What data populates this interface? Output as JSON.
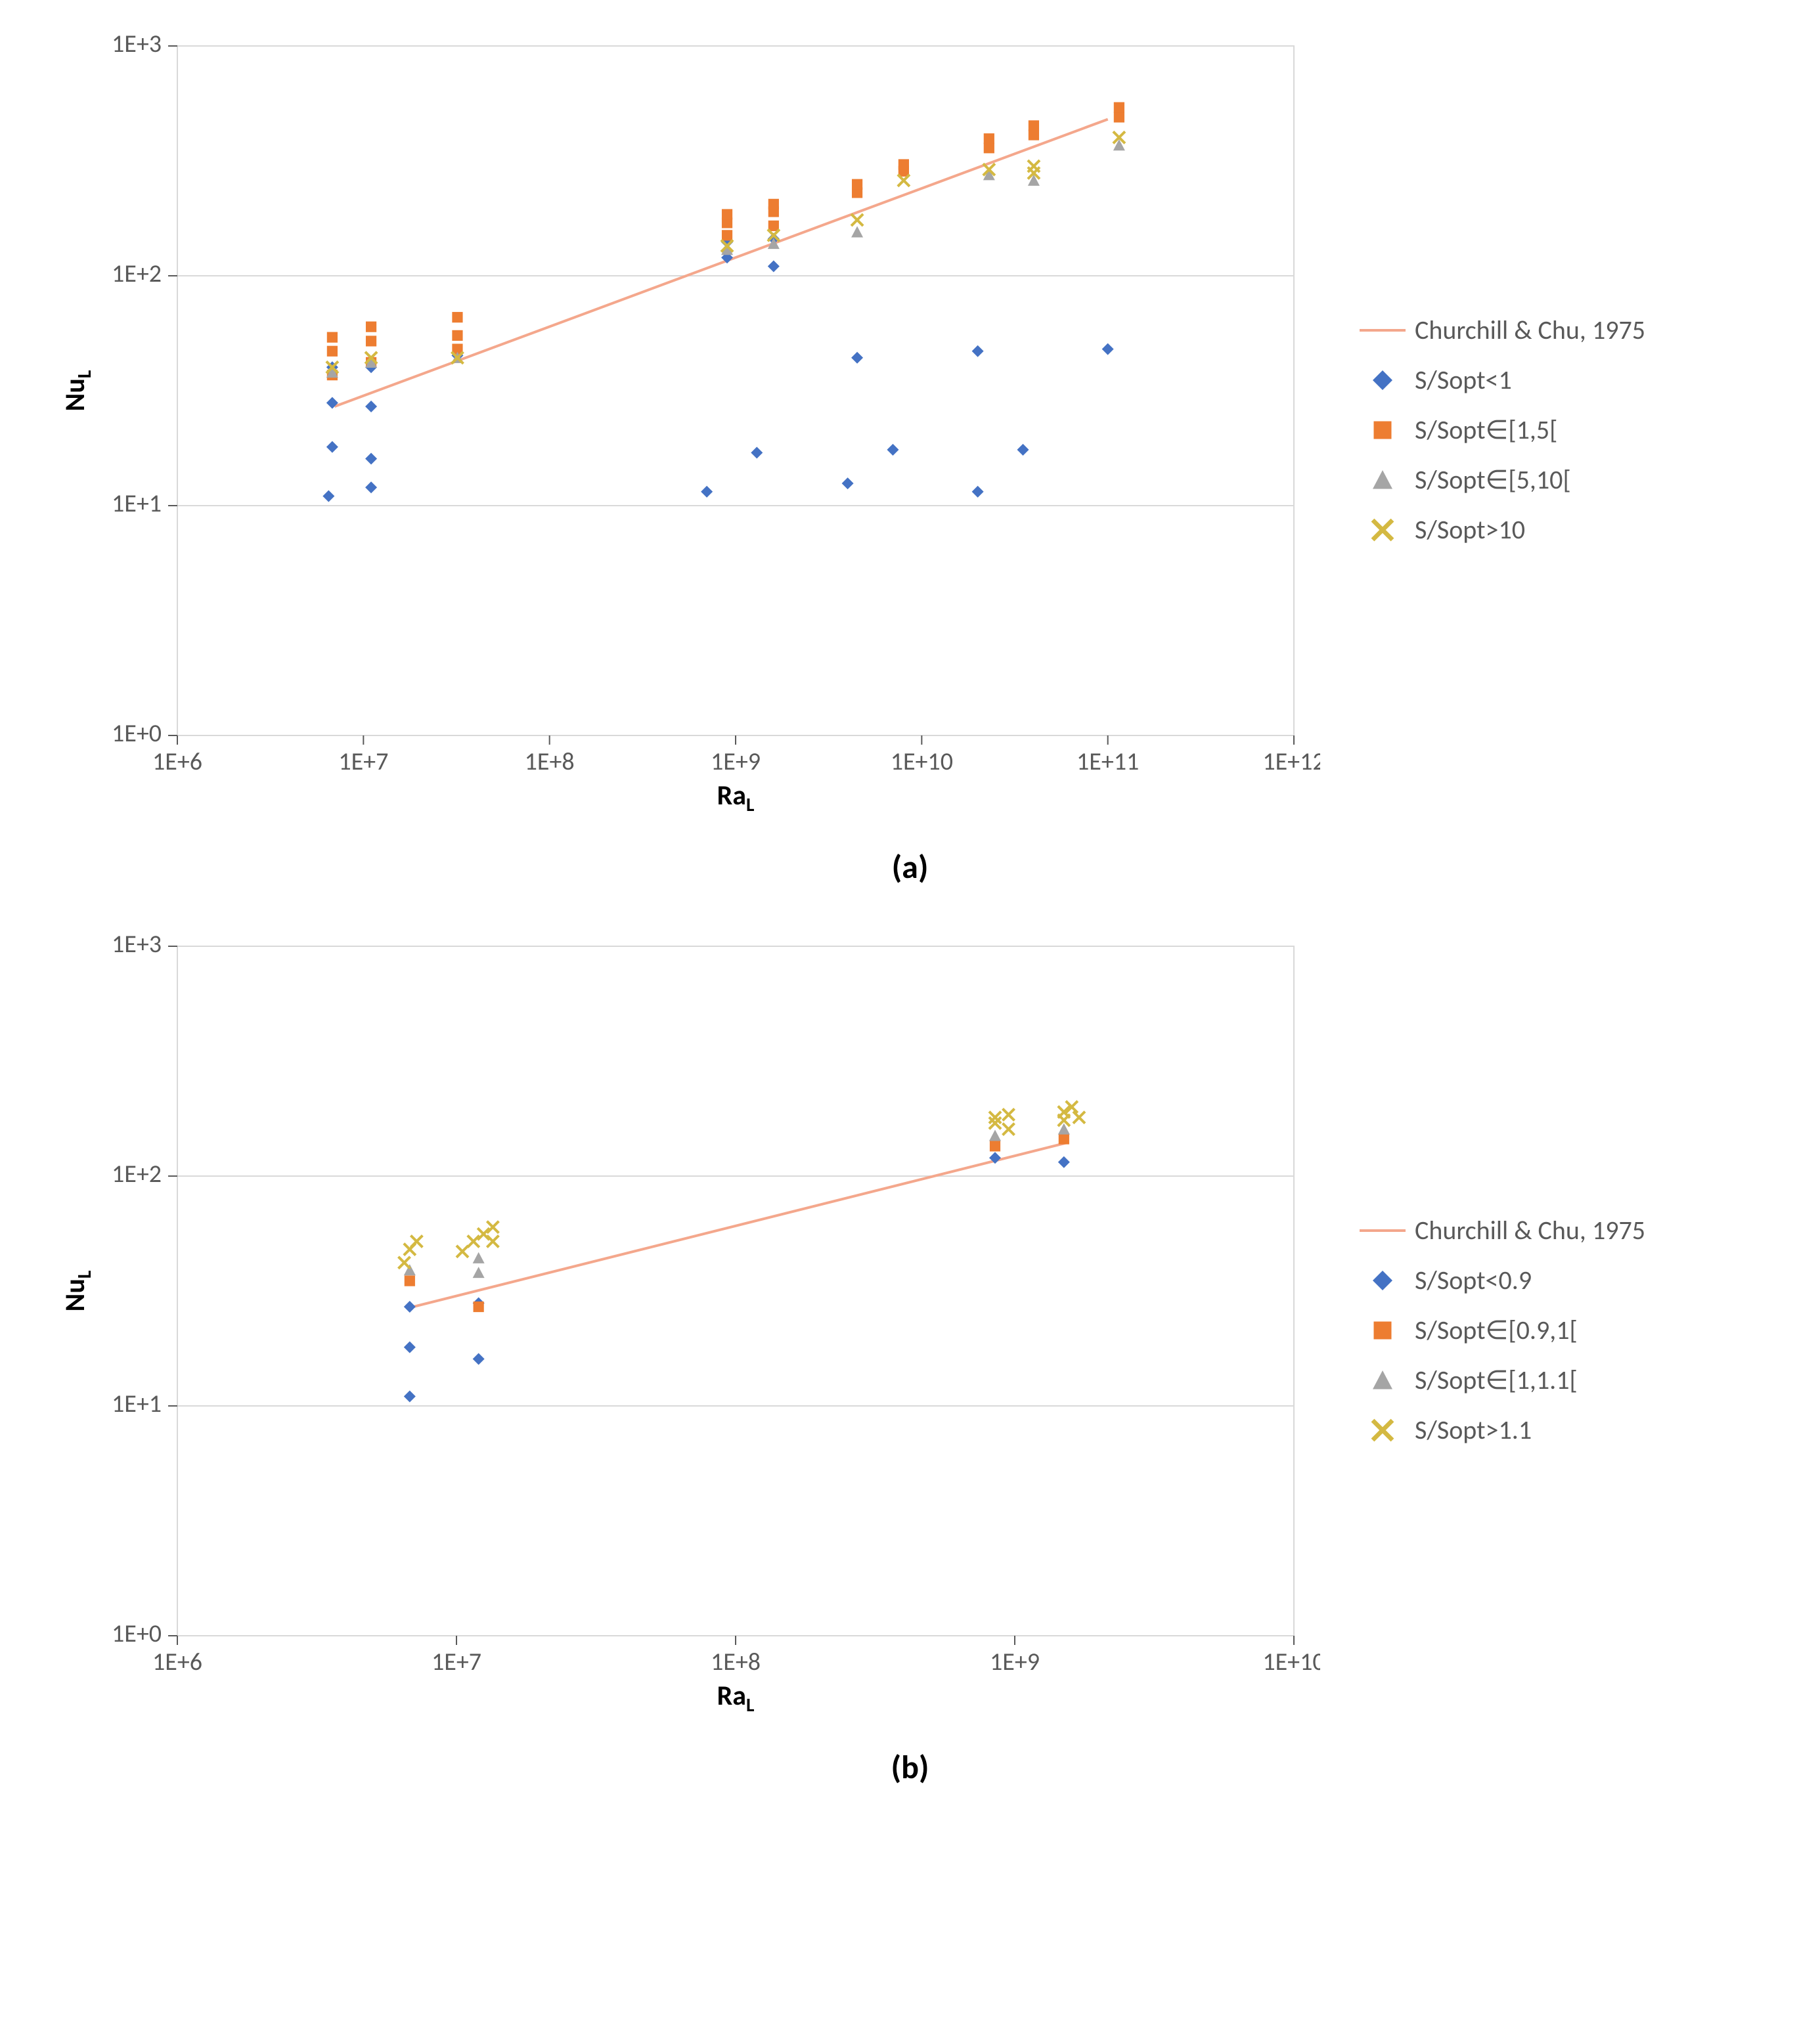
{
  "panel_a": {
    "type": "scatter+line",
    "title": "",
    "xlabel_prefix": "Ra",
    "xlabel_sub": "L",
    "ylabel_prefix": "Nu",
    "ylabel_sub": "L",
    "caption": "(a)",
    "xscale": "log",
    "yscale": "log",
    "xlim_exp": [
      6,
      12
    ],
    "ylim_exp": [
      0,
      3
    ],
    "xtick_exps": [
      6,
      7,
      8,
      9,
      10,
      11,
      12
    ],
    "ytick_exps": [
      0,
      1,
      2,
      3
    ],
    "tick_label_base": "1E",
    "axis_tick_fontsize": 38,
    "axis_label_fontsize": 42,
    "axis_label_color": "#000000",
    "plot_bg": "#ffffff",
    "grid_color": "#d9d9d9",
    "border_color": "#d9d9d9",
    "tick_color": "#595959",
    "legend_fontsize": 40,
    "legend_color": "#595959",
    "line_width": 4,
    "marker_size": 18,
    "series": [
      {
        "name": "Churchill & Chu, 1975",
        "display": "line",
        "color": "#f4a78c",
        "points": [
          {
            "x": 7000000.0,
            "y": 27
          },
          {
            "x": 100000000000.0,
            "y": 480
          }
        ]
      },
      {
        "name": "S/Sopt<1",
        "display": "diamond",
        "color": "#4472c4",
        "points": [
          {
            "x": 6500000.0,
            "y": 11
          },
          {
            "x": 6800000.0,
            "y": 18
          },
          {
            "x": 6800000.0,
            "y": 28
          },
          {
            "x": 6800000.0,
            "y": 40
          },
          {
            "x": 11000000.0,
            "y": 12
          },
          {
            "x": 11000000.0,
            "y": 16
          },
          {
            "x": 11000000.0,
            "y": 27
          },
          {
            "x": 11000000.0,
            "y": 40
          },
          {
            "x": 32000000.0,
            "y": 45
          },
          {
            "x": 700000000.0,
            "y": 11.5
          },
          {
            "x": 900000000.0,
            "y": 120
          },
          {
            "x": 900000000.0,
            "y": 140
          },
          {
            "x": 1300000000.0,
            "y": 17
          },
          {
            "x": 1600000000.0,
            "y": 110
          },
          {
            "x": 1600000000.0,
            "y": 145
          },
          {
            "x": 4000000000.0,
            "y": 12.5
          },
          {
            "x": 4500000000.0,
            "y": 44
          },
          {
            "x": 7000000000.0,
            "y": 17.5
          },
          {
            "x": 20000000000.0,
            "y": 11.5
          },
          {
            "x": 20000000000.0,
            "y": 47
          },
          {
            "x": 35000000000.0,
            "y": 17.5
          },
          {
            "x": 100000000000.0,
            "y": 48
          }
        ]
      },
      {
        "name": "S/Sopt∈[1,5[",
        "display": "square",
        "color": "#ed7d31",
        "points": [
          {
            "x": 6800000.0,
            "y": 37
          },
          {
            "x": 6800000.0,
            "y": 47
          },
          {
            "x": 6800000.0,
            "y": 54
          },
          {
            "x": 11000000.0,
            "y": 42
          },
          {
            "x": 11000000.0,
            "y": 52
          },
          {
            "x": 11000000.0,
            "y": 60
          },
          {
            "x": 32000000.0,
            "y": 48
          },
          {
            "x": 32000000.0,
            "y": 55
          },
          {
            "x": 32000000.0,
            "y": 66
          },
          {
            "x": 900000000.0,
            "y": 150
          },
          {
            "x": 900000000.0,
            "y": 170
          },
          {
            "x": 900000000.0,
            "y": 185
          },
          {
            "x": 1600000000.0,
            "y": 165
          },
          {
            "x": 1600000000.0,
            "y": 190
          },
          {
            "x": 1600000000.0,
            "y": 205
          },
          {
            "x": 4500000000.0,
            "y": 230
          },
          {
            "x": 4500000000.0,
            "y": 250
          },
          {
            "x": 8000000000.0,
            "y": 285
          },
          {
            "x": 8000000000.0,
            "y": 305
          },
          {
            "x": 23000000000.0,
            "y": 360
          },
          {
            "x": 23000000000.0,
            "y": 395
          },
          {
            "x": 40000000000.0,
            "y": 410
          },
          {
            "x": 40000000000.0,
            "y": 450
          },
          {
            "x": 115000000000.0,
            "y": 490
          },
          {
            "x": 115000000000.0,
            "y": 540
          }
        ]
      },
      {
        "name": "S/Sopt∈[5,10[",
        "display": "triangle",
        "color": "#a5a5a5",
        "points": [
          {
            "x": 6800000.0,
            "y": 38
          },
          {
            "x": 11000000.0,
            "y": 42
          },
          {
            "x": 32000000.0,
            "y": 44
          },
          {
            "x": 900000000.0,
            "y": 130
          },
          {
            "x": 1600000000.0,
            "y": 138
          },
          {
            "x": 4500000000.0,
            "y": 155
          },
          {
            "x": 23000000000.0,
            "y": 275
          },
          {
            "x": 40000000000.0,
            "y": 260
          },
          {
            "x": 115000000000.0,
            "y": 370
          }
        ]
      },
      {
        "name": "S/Sopt>10",
        "display": "cross",
        "color": "#d4b942",
        "points": [
          {
            "x": 6800000.0,
            "y": 40
          },
          {
            "x": 11000000.0,
            "y": 44
          },
          {
            "x": 32000000.0,
            "y": 44
          },
          {
            "x": 900000000.0,
            "y": 135
          },
          {
            "x": 1600000000.0,
            "y": 150
          },
          {
            "x": 4500000000.0,
            "y": 175
          },
          {
            "x": 8000000000.0,
            "y": 260
          },
          {
            "x": 23000000000.0,
            "y": 290
          },
          {
            "x": 40000000000.0,
            "y": 300
          },
          {
            "x": 40000000000.0,
            "y": 280
          },
          {
            "x": 115000000000.0,
            "y": 400
          }
        ]
      }
    ]
  },
  "panel_b": {
    "type": "scatter+line",
    "title": "",
    "xlabel_prefix": "Ra",
    "xlabel_sub": "L",
    "ylabel_prefix": "Nu",
    "ylabel_sub": "L",
    "caption": "(b)",
    "xscale": "log",
    "yscale": "log",
    "xlim_exp": [
      6,
      10
    ],
    "ylim_exp": [
      0,
      3
    ],
    "xtick_exps": [
      6,
      7,
      8,
      9,
      10
    ],
    "ytick_exps": [
      0,
      1,
      2,
      3
    ],
    "tick_label_base": "1E",
    "axis_tick_fontsize": 38,
    "axis_label_fontsize": 42,
    "axis_label_color": "#000000",
    "plot_bg": "#ffffff",
    "grid_color": "#d9d9d9",
    "border_color": "#d9d9d9",
    "tick_color": "#595959",
    "legend_fontsize": 40,
    "legend_color": "#595959",
    "line_width": 4,
    "marker_size": 18,
    "series": [
      {
        "name": "Churchill & Chu, 1975",
        "display": "line",
        "color": "#f4a78c",
        "points": [
          {
            "x": 7000000.0,
            "y": 27
          },
          {
            "x": 1550000000.0,
            "y": 140
          }
        ]
      },
      {
        "name": "S/Sopt<0.9",
        "display": "diamond",
        "color": "#4472c4",
        "points": [
          {
            "x": 6800000.0,
            "y": 11
          },
          {
            "x": 6800000.0,
            "y": 18
          },
          {
            "x": 6800000.0,
            "y": 27
          },
          {
            "x": 12000000.0,
            "y": 16
          },
          {
            "x": 12000000.0,
            "y": 28
          },
          {
            "x": 850000000.0,
            "y": 120
          },
          {
            "x": 1500000000.0,
            "y": 115
          }
        ]
      },
      {
        "name": "S/Sopt∈[0.9,1[",
        "display": "square",
        "color": "#ed7d31",
        "points": [
          {
            "x": 6800000.0,
            "y": 35
          },
          {
            "x": 12000000.0,
            "y": 27
          },
          {
            "x": 850000000.0,
            "y": 135
          },
          {
            "x": 1500000000.0,
            "y": 145
          }
        ]
      },
      {
        "name": "S/Sopt∈[1,1.1[",
        "display": "triangle",
        "color": "#a5a5a5",
        "points": [
          {
            "x": 6800000.0,
            "y": 39
          },
          {
            "x": 12000000.0,
            "y": 38
          },
          {
            "x": 12000000.0,
            "y": 44
          },
          {
            "x": 850000000.0,
            "y": 150
          },
          {
            "x": 1500000000.0,
            "y": 160
          }
        ]
      },
      {
        "name": "S/Sopt>1.1",
        "display": "cross",
        "color": "#d4b942",
        "points": [
          {
            "x": 6500000.0,
            "y": 42
          },
          {
            "x": 6800000.0,
            "y": 48
          },
          {
            "x": 7200000.0,
            "y": 52
          },
          {
            "x": 10500000.0,
            "y": 47
          },
          {
            "x": 11500000.0,
            "y": 52
          },
          {
            "x": 12500000.0,
            "y": 56
          },
          {
            "x": 13500000.0,
            "y": 60
          },
          {
            "x": 13500000.0,
            "y": 52
          },
          {
            "x": 850000000.0,
            "y": 170
          },
          {
            "x": 850000000.0,
            "y": 180
          },
          {
            "x": 950000000.0,
            "y": 160
          },
          {
            "x": 950000000.0,
            "y": 185
          },
          {
            "x": 1500000000.0,
            "y": 175
          },
          {
            "x": 1500000000.0,
            "y": 190
          },
          {
            "x": 1600000000.0,
            "y": 200
          },
          {
            "x": 1700000000.0,
            "y": 180
          }
        ]
      }
    ]
  }
}
